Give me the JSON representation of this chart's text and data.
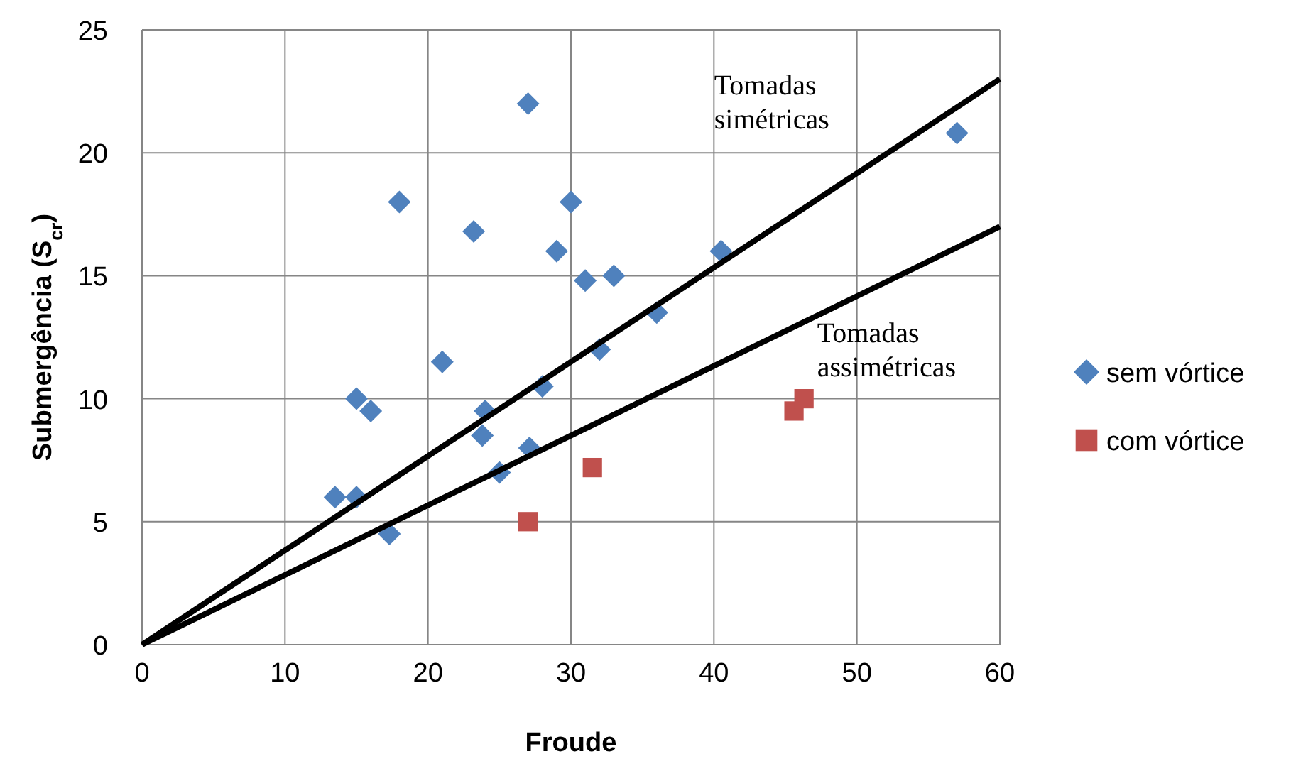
{
  "chart_data": {
    "type": "scatter",
    "xlabel": "Froude",
    "ylabel": "Submergência (S$_{cr}$)",
    "xlim": [
      0,
      60
    ],
    "ylim": [
      0,
      25
    ],
    "xticks": [
      0,
      10,
      20,
      30,
      40,
      50,
      60
    ],
    "yticks": [
      0,
      5,
      10,
      15,
      20,
      25
    ],
    "grid": true,
    "legend": "right",
    "series": [
      {
        "name": "sem vórtice",
        "color": "#4f81bd",
        "marker": "diamond",
        "x": [
          13.5,
          15,
          15,
          16,
          17.3,
          18,
          21,
          23.2,
          23.8,
          24,
          25,
          27,
          27.1,
          28,
          29,
          30,
          31,
          32,
          33,
          36,
          40.5,
          57
        ],
        "values": [
          6,
          6,
          10,
          9.5,
          4.5,
          18,
          11.5,
          16.8,
          8.5,
          9.5,
          7,
          22,
          8,
          10.5,
          16,
          18,
          14.8,
          12,
          15,
          13.5,
          16,
          20.8
        ]
      },
      {
        "name": "com vórtice",
        "color": "#c0504d",
        "marker": "square",
        "x": [
          27,
          31.5,
          45.6,
          46.3
        ],
        "values": [
          5,
          7.2,
          9.5,
          10
        ]
      },
      {
        "type": "line",
        "color": "#000000",
        "marker": "none",
        "x": [
          0,
          60
        ],
        "values": [
          0,
          23
        ]
      },
      {
        "type": "line",
        "color": "#000000",
        "marker": "none",
        "x": [
          0,
          60
        ],
        "values": [
          0,
          17
        ]
      }
    ],
    "annotations": [
      "Tomadas simétricas",
      "Tomadas assimétricas"
    ]
  }
}
